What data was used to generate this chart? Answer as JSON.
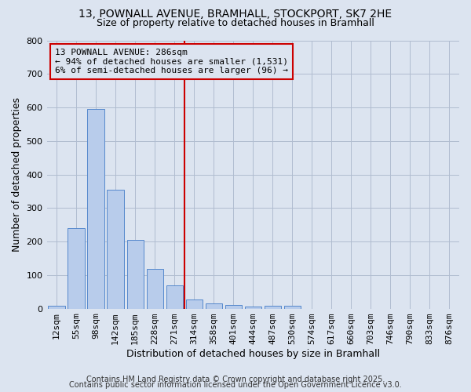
{
  "title_line1": "13, POWNALL AVENUE, BRAMHALL, STOCKPORT, SK7 2HE",
  "title_line2": "Size of property relative to detached houses in Bramhall",
  "xlabel": "Distribution of detached houses by size in Bramhall",
  "ylabel": "Number of detached properties",
  "categories": [
    "12sqm",
    "55sqm",
    "98sqm",
    "142sqm",
    "185sqm",
    "228sqm",
    "271sqm",
    "314sqm",
    "358sqm",
    "401sqm",
    "444sqm",
    "487sqm",
    "530sqm",
    "574sqm",
    "617sqm",
    "660sqm",
    "703sqm",
    "746sqm",
    "790sqm",
    "833sqm",
    "876sqm"
  ],
  "values": [
    8,
    240,
    595,
    355,
    205,
    118,
    70,
    28,
    15,
    10,
    6,
    8,
    8,
    0,
    0,
    0,
    0,
    0,
    0,
    0,
    0
  ],
  "bar_color": "#b8cceb",
  "bar_edge_color": "#5588cc",
  "grid_color": "#b0bcd0",
  "bg_color": "#dce4f0",
  "vline_color": "#cc0000",
  "vline_x": 6.5,
  "annotation_text": "13 POWNALL AVENUE: 286sqm\n← 94% of detached houses are smaller (1,531)\n6% of semi-detached houses are larger (96) →",
  "ylim": [
    0,
    800
  ],
  "yticks": [
    0,
    100,
    200,
    300,
    400,
    500,
    600,
    700,
    800
  ],
  "footer_line1": "Contains HM Land Registry data © Crown copyright and database right 2025.",
  "footer_line2": "Contains public sector information licensed under the Open Government Licence v3.0.",
  "title_fontsize": 10,
  "subtitle_fontsize": 9,
  "axis_label_fontsize": 9,
  "tick_fontsize": 8,
  "footer_fontsize": 7,
  "annot_fontsize": 8
}
